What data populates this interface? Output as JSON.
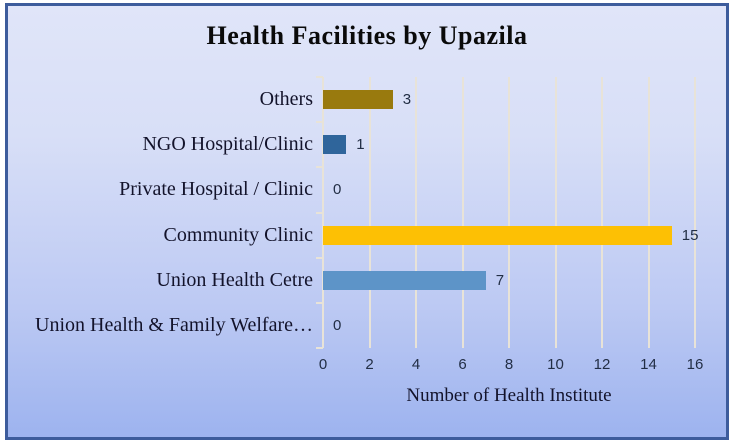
{
  "chart": {
    "title": "Health Facilities by Upazila",
    "xlabel": "Number of Health Institute"
  },
  "chart_data": {
    "type": "bar",
    "orientation": "horizontal",
    "title": "Health Facilities by Upazila",
    "xlabel": "Number of Health Institute",
    "categories": [
      "Others",
      "NGO Hospital/Clinic",
      "Private Hospital / Clinic",
      "Community Clinic",
      "Union Health Cetre",
      "Union Health & Family Welfare…"
    ],
    "values": [
      3,
      1,
      0,
      15,
      7,
      0
    ],
    "bar_colors": [
      "#997a0e",
      "#2f659b",
      null,
      "#fdc004",
      "#5d94c8",
      null
    ],
    "xlim": [
      0,
      16
    ],
    "xticks": [
      0,
      2,
      4,
      6,
      8,
      10,
      12,
      14,
      16
    ],
    "grid": true,
    "legend": false,
    "data_labels": true
  },
  "colors": {
    "frame_border": "#3d5c9c",
    "background_top": "#e0e5f9",
    "background_bottom": "#9db3ef",
    "gridline": "#e8e3d8",
    "title_text": "#0a0a0a",
    "category_text": "#13132b",
    "value_text": "#222e45"
  }
}
